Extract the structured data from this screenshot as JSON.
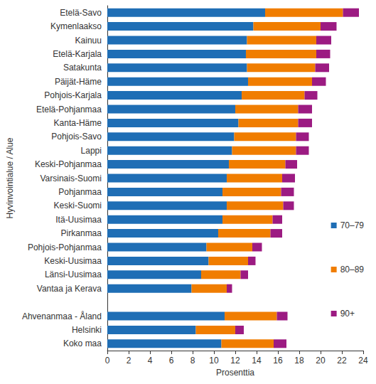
{
  "chart_data": {
    "type": "bar",
    "orientation": "horizontal",
    "stacked": true,
    "grid": false,
    "legend": "right",
    "xlabel": "Prosenttia",
    "ylabel": "Hyvinvointialue / Alue",
    "categories": [
      "Etelä-Savo",
      "Kymenlaakso",
      "Kainuu",
      "Etelä-Karjala",
      "Satakunta",
      "Päijät-Häme",
      "Pohjois-Karjala",
      "Etelä-Pohjanmaa",
      "Kanta-Häme",
      "Pohjois-Savo",
      "Lappi",
      "Keski-Pohjanmaa",
      "Varsinais-Suomi",
      "Pohjanmaa",
      "Keski-Suomi",
      "Itä-Uusimaa",
      "Pirkanmaa",
      "Pohjois-Pohjanmaa",
      "Keski-Uusimaa",
      "Länsi-Uusimaa",
      "Vantaa ja Kerava",
      null,
      "Ahvenanmaa - Åland",
      "Helsinki",
      "Koko maa"
    ],
    "series": [
      {
        "name": "70–79",
        "color": "#1f6eb5",
        "values": [
          14.8,
          13.7,
          13.1,
          13.0,
          13.1,
          13.2,
          12.6,
          12.0,
          12.3,
          11.9,
          11.7,
          11.4,
          11.2,
          10.8,
          11.2,
          10.8,
          10.4,
          9.3,
          9.5,
          8.8,
          7.9,
          null,
          11.0,
          8.3,
          10.7
        ]
      },
      {
        "name": "80–89",
        "color": "#f07d00",
        "values": [
          7.3,
          6.3,
          6.5,
          6.6,
          6.4,
          6.0,
          5.9,
          5.9,
          5.6,
          5.8,
          6.0,
          5.3,
          5.2,
          5.5,
          5.3,
          4.7,
          4.9,
          4.3,
          3.7,
          3.7,
          3.3,
          null,
          4.9,
          3.7,
          4.9
        ]
      },
      {
        "name": "90+",
        "color": "#9c1b82",
        "values": [
          1.5,
          1.5,
          1.4,
          1.3,
          1.3,
          1.3,
          1.2,
          1.3,
          1.3,
          1.2,
          1.2,
          1.1,
          1.2,
          1.2,
          1.0,
          0.9,
          1.1,
          0.9,
          0.7,
          0.7,
          0.5,
          null,
          1.0,
          0.8,
          1.2
        ]
      }
    ],
    "xlim": [
      0,
      24
    ],
    "xticks": [
      0,
      2,
      4,
      6,
      8,
      10,
      12,
      14,
      16,
      18,
      20,
      22,
      24
    ]
  }
}
